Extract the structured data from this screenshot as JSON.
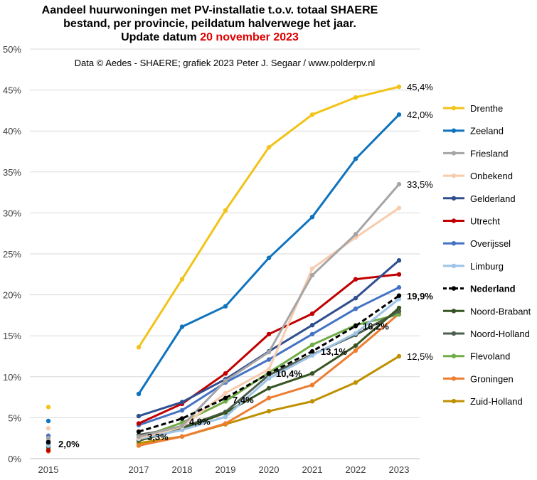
{
  "chart_data": {
    "type": "line",
    "title_lines": [
      "Aandeel huurwoningen met PV-installatie  t.o.v. totaal SHAERE",
      "bestand, per provincie, peildatum  halverwege het jaar."
    ],
    "title_update_prefix": "Update datum",
    "title_update_date": "20 november 2023",
    "source": "Data © Aedes - SHAERE;  grafiek 2023 Peter J. Segaar / www.polderpv.nl",
    "x": [
      "2015",
      "2016",
      "2017",
      "2018",
      "2019",
      "2020",
      "2021",
      "2022",
      "2023"
    ],
    "x_tick_labels": [
      "2015",
      "",
      "2017",
      "2018",
      "2019",
      "2020",
      "2021",
      "2022",
      "2023"
    ],
    "ylim": [
      0,
      50
    ],
    "y_ticks": [
      "0%",
      "5%",
      "10%",
      "15%",
      "20%",
      "25%",
      "30%",
      "35%",
      "40%",
      "45%",
      "50%"
    ],
    "grid": true,
    "legend_position": "right",
    "series": [
      {
        "name": "Drenthe",
        "color": "#f2c318",
        "width": 3,
        "dash": false,
        "bold": false,
        "values": [
          6.3,
          null,
          13.6,
          21.9,
          30.3,
          38.0,
          42.0,
          44.1,
          45.4
        ]
      },
      {
        "name": "Zeeland",
        "color": "#0f73be",
        "width": 3,
        "dash": false,
        "bold": false,
        "values": [
          4.6,
          null,
          7.9,
          16.1,
          18.6,
          24.5,
          29.5,
          36.6,
          42.0
        ]
      },
      {
        "name": "Friesland",
        "color": "#a5a5a5",
        "width": 3,
        "dash": false,
        "bold": false,
        "values": [
          2.5,
          null,
          2.7,
          4.0,
          9.5,
          13.0,
          22.4,
          27.4,
          33.5
        ]
      },
      {
        "name": "Onbekend",
        "color": "#f8cbad",
        "width": 3,
        "dash": false,
        "bold": false,
        "values": [
          3.7,
          null,
          2.5,
          3.9,
          8.0,
          10.9,
          23.2,
          27.0,
          30.6
        ]
      },
      {
        "name": "Gelderland",
        "color": "#2f4f8f",
        "width": 3,
        "dash": false,
        "bold": false,
        "values": [
          2.1,
          null,
          5.2,
          6.9,
          9.7,
          13.1,
          16.3,
          19.6,
          24.2
        ]
      },
      {
        "name": "Utrecht",
        "color": "#c00000",
        "width": 3,
        "dash": false,
        "bold": false,
        "values": [
          1.0,
          null,
          4.3,
          6.7,
          10.4,
          15.2,
          17.7,
          21.9,
          22.5
        ]
      },
      {
        "name": "Overijssel",
        "color": "#4472c4",
        "width": 3,
        "dash": false,
        "bold": false,
        "values": [
          2.8,
          null,
          4.1,
          5.9,
          9.3,
          12.1,
          15.2,
          18.3,
          20.9
        ]
      },
      {
        "name": "Limburg",
        "color": "#9dc3e6",
        "width": 3,
        "dash": false,
        "bold": false,
        "values": [
          1.6,
          null,
          2.4,
          3.5,
          5.1,
          9.8,
          12.6,
          15.3,
          19.5
        ]
      },
      {
        "name": "Nederland",
        "color": "#000000",
        "width": 3,
        "dash": true,
        "bold": true,
        "values": [
          2.0,
          null,
          3.3,
          4.9,
          7.4,
          10.4,
          13.1,
          16.2,
          19.9
        ]
      },
      {
        "name": "Noord-Brabant",
        "color": "#375623",
        "width": 3,
        "dash": false,
        "bold": false,
        "values": [
          1.4,
          null,
          2.2,
          3.6,
          5.6,
          8.6,
          10.4,
          13.8,
          18.4
        ]
      },
      {
        "name": "Noord-Holland",
        "color": "#4e5e4e",
        "width": 3,
        "dash": false,
        "bold": false,
        "values": [
          1.8,
          null,
          2.9,
          3.8,
          5.7,
          10.2,
          12.7,
          15.1,
          18.0
        ]
      },
      {
        "name": "Flevoland",
        "color": "#70ad47",
        "width": 3,
        "dash": false,
        "bold": false,
        "values": [
          1.9,
          null,
          2.5,
          4.4,
          7.0,
          10.5,
          13.9,
          16.3,
          17.6
        ]
      },
      {
        "name": "Groningen",
        "color": "#ed7d31",
        "width": 3,
        "dash": false,
        "bold": false,
        "values": [
          0.9,
          null,
          1.6,
          2.7,
          4.3,
          7.4,
          9.0,
          13.2,
          17.7
        ]
      },
      {
        "name": "Zuid-Holland",
        "color": "#bf9000",
        "width": 3,
        "dash": false,
        "bold": false,
        "values": [
          1.2,
          null,
          1.9,
          2.7,
          4.2,
          5.8,
          7.0,
          9.3,
          12.5
        ]
      }
    ],
    "end_labels": [
      {
        "series": "Drenthe",
        "text": "45,4%"
      },
      {
        "series": "Zeeland",
        "text": "42,0%"
      },
      {
        "series": "Friesland",
        "text": "33,5%"
      },
      {
        "series": "Nederland",
        "text": "19,9%"
      },
      {
        "series": "Zuid-Holland",
        "text": "12,5%"
      }
    ],
    "nederland_labels": [
      {
        "x": "2015",
        "text": "2,0%"
      },
      {
        "x": "2017",
        "text": "3,3%"
      },
      {
        "x": "2018",
        "text": "4,9%"
      },
      {
        "x": "2019",
        "text": "7,4%"
      },
      {
        "x": "2020",
        "text": "10,4%"
      },
      {
        "x": "2021",
        "text": "13,1%"
      },
      {
        "x": "2022",
        "text": "16,2%"
      }
    ]
  }
}
